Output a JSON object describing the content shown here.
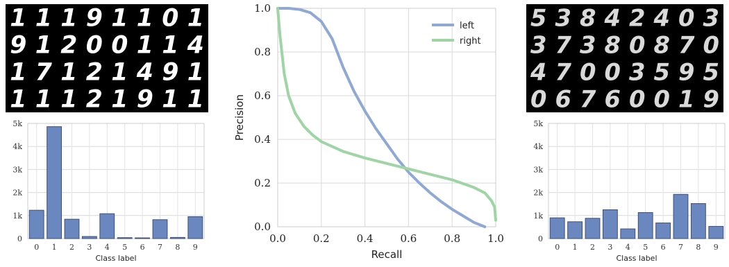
{
  "figure": {
    "left_panel": {
      "digits_shown": [
        [
          "1",
          "1",
          "1",
          "9",
          "1",
          "1",
          "0",
          "1"
        ],
        [
          "9",
          "1",
          "2",
          "0",
          "0",
          "1",
          "1",
          "4"
        ],
        [
          "1",
          "7",
          "1",
          "2",
          "1",
          "4",
          "9",
          "1"
        ],
        [
          "1",
          "1",
          "1",
          "2",
          "1",
          "9",
          "1",
          "1"
        ]
      ]
    },
    "right_panel": {
      "digits_shown": [
        [
          "5",
          "3",
          "8",
          "4",
          "2",
          "4",
          "0",
          "3"
        ],
        [
          "3",
          "7",
          "3",
          "8",
          "0",
          "8",
          "7",
          "0"
        ],
        [
          "4",
          "7",
          "0",
          "0",
          "3",
          "5",
          "9",
          "5"
        ],
        [
          "0",
          "6",
          "7",
          "6",
          "0",
          "0",
          "1",
          "9"
        ]
      ]
    },
    "colors": {
      "left": "#8fa8d4",
      "right": "#9fd4a4",
      "bar": "#6b87c0",
      "bar_edge": "#3d4f7a"
    }
  },
  "chart_data": [
    {
      "type": "bar",
      "xlabel": "Class label",
      "ylabel": "",
      "categories": [
        "0",
        "1",
        "2",
        "3",
        "4",
        "5",
        "6",
        "7",
        "8",
        "9"
      ],
      "values": [
        1230,
        4860,
        840,
        90,
        1080,
        40,
        30,
        820,
        50,
        950
      ],
      "ylim": [
        0,
        5000
      ],
      "yticks": [
        "0",
        "1k",
        "2k",
        "3k",
        "4k",
        "5k"
      ],
      "grid": true
    },
    {
      "type": "line",
      "xlabel": "Recall",
      "ylabel": "Precision",
      "xlim": [
        0,
        1
      ],
      "ylim": [
        0,
        1
      ],
      "xticks": [
        "0.0",
        "0.2",
        "0.4",
        "0.6",
        "0.8",
        "1.0"
      ],
      "yticks": [
        "0.0",
        "0.2",
        "0.4",
        "0.6",
        "0.8",
        "1.0"
      ],
      "grid": true,
      "legend": "top-right",
      "series": [
        {
          "name": "left",
          "x": [
            0.0,
            0.05,
            0.1,
            0.15,
            0.2,
            0.25,
            0.3,
            0.35,
            0.4,
            0.45,
            0.5,
            0.55,
            0.6,
            0.65,
            0.7,
            0.75,
            0.8,
            0.85,
            0.9,
            0.95
          ],
          "y": [
            1.0,
            1.0,
            0.995,
            0.98,
            0.94,
            0.86,
            0.73,
            0.62,
            0.53,
            0.45,
            0.38,
            0.31,
            0.25,
            0.2,
            0.155,
            0.115,
            0.08,
            0.05,
            0.02,
            0.0
          ]
        },
        {
          "name": "right",
          "x": [
            0.0,
            0.01,
            0.03,
            0.05,
            0.08,
            0.12,
            0.16,
            0.2,
            0.3,
            0.4,
            0.5,
            0.6,
            0.7,
            0.8,
            0.9,
            0.95,
            0.98,
            0.995,
            1.0
          ],
          "y": [
            1.0,
            0.88,
            0.7,
            0.6,
            0.52,
            0.46,
            0.42,
            0.39,
            0.345,
            0.315,
            0.29,
            0.265,
            0.24,
            0.215,
            0.18,
            0.155,
            0.12,
            0.09,
            0.03
          ]
        }
      ]
    },
    {
      "type": "bar",
      "xlabel": "Class label",
      "ylabel": "",
      "categories": [
        "0",
        "1",
        "2",
        "3",
        "4",
        "5",
        "6",
        "7",
        "8",
        "9"
      ],
      "values": [
        900,
        730,
        880,
        1250,
        420,
        1130,
        680,
        1920,
        1520,
        530
      ],
      "ylim": [
        0,
        5000
      ],
      "yticks": [
        "0",
        "1k",
        "2k",
        "3k",
        "4k",
        "5k"
      ],
      "grid": true
    }
  ]
}
